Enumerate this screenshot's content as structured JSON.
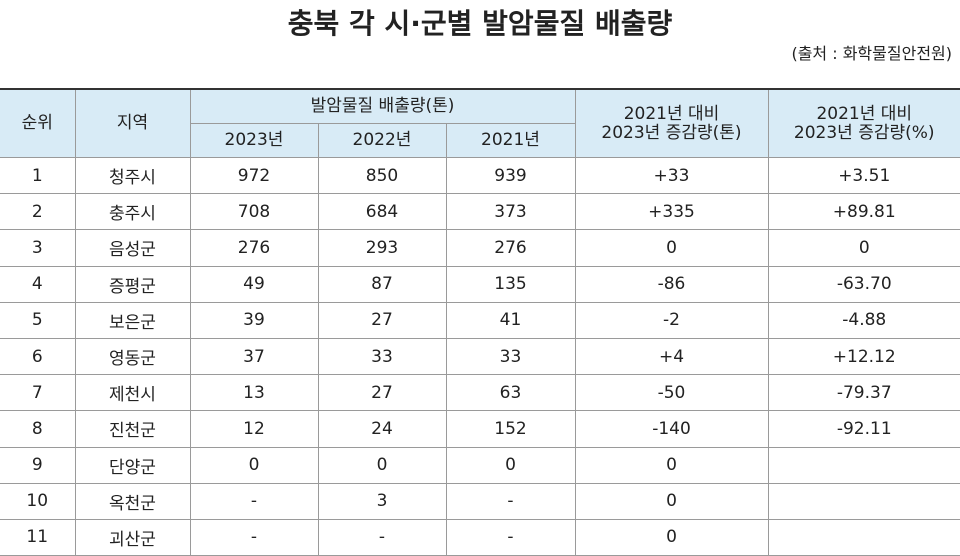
{
  "header": {
    "title": "충북 각 시·군별 발암물질 배출량",
    "source": "(출처 : 화학물질안전원)"
  },
  "table": {
    "columns": {
      "rank": "순위",
      "region": "지역",
      "group": "발암물질 배출량(톤)",
      "years": [
        "2023년",
        "2022년",
        "2021년"
      ],
      "diff_t": [
        "2021년 대비",
        "2023년 증감량(톤)"
      ],
      "diff_pct": [
        "2021년 대비",
        "2023년 증감량(%)"
      ]
    },
    "rows": [
      [
        "1",
        "청주시",
        "972",
        "850",
        "939",
        "+33",
        "+3.51"
      ],
      [
        "2",
        "충주시",
        "708",
        "684",
        "373",
        "+335",
        "+89.81"
      ],
      [
        "3",
        "음성군",
        "276",
        "293",
        "276",
        "0",
        "0"
      ],
      [
        "4",
        "증평군",
        "49",
        "87",
        "135",
        "-86",
        "-63.70"
      ],
      [
        "5",
        "보은군",
        "39",
        "27",
        "41",
        "-2",
        "-4.88"
      ],
      [
        "6",
        "영동군",
        "37",
        "33",
        "33",
        "+4",
        "+12.12"
      ],
      [
        "7",
        "제천시",
        "13",
        "27",
        "63",
        "-50",
        "-79.37"
      ],
      [
        "8",
        "진천군",
        "12",
        "24",
        "152",
        "-140",
        "-92.11"
      ],
      [
        "9",
        "단양군",
        "0",
        "0",
        "0",
        "0"
      ],
      [
        "10",
        "옥천군",
        "-",
        "3",
        "-",
        "0"
      ],
      [
        "11",
        "괴산군",
        "-",
        "-",
        "-",
        "0"
      ]
    ]
  }
}
